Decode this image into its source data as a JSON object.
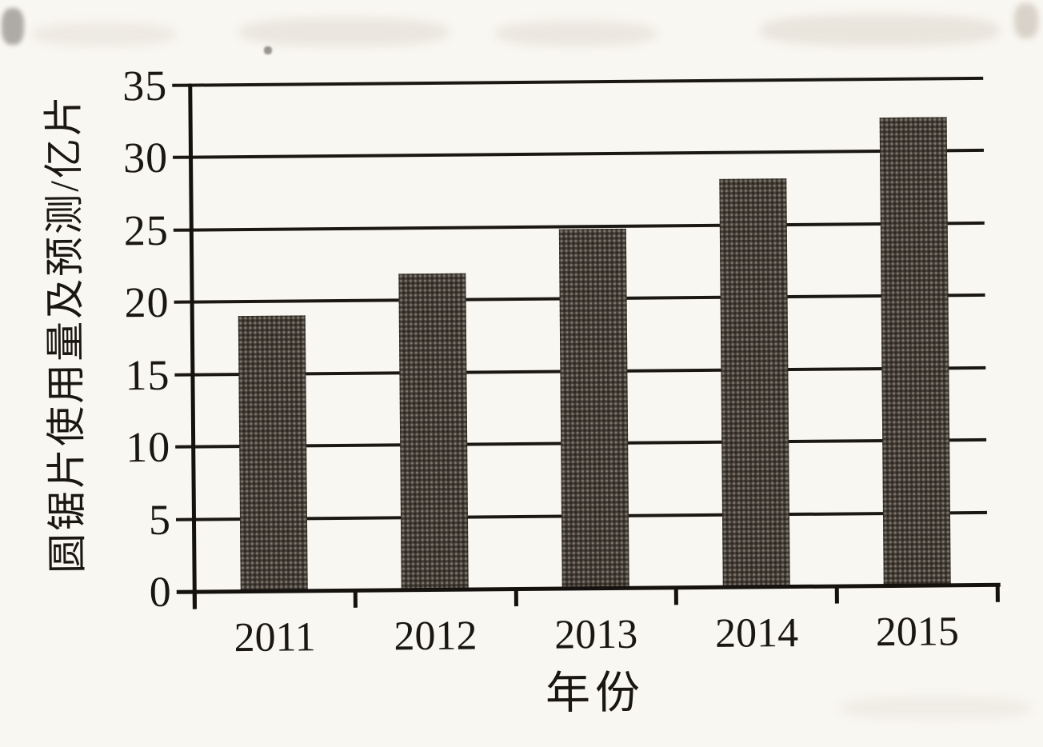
{
  "chart_data": {
    "type": "bar",
    "title": "",
    "xlabel": "年份",
    "ylabel": "圆锯片使用量及预测/亿片",
    "categories": [
      "2011",
      "2012",
      "2013",
      "2014",
      "2015"
    ],
    "values": [
      19,
      21.8,
      24.8,
      28.2,
      32.3
    ],
    "ylim": [
      0,
      35
    ],
    "yticks": [
      "0",
      "5",
      "10",
      "15",
      "20",
      "25",
      "30",
      "35"
    ],
    "ytick_values": [
      0,
      5,
      10,
      15,
      20,
      25,
      30,
      35
    ],
    "grid": "horizontal",
    "legend": "none",
    "bar_color": "#443e37",
    "line_color": "#1b1713",
    "paper_color": "#f9f7f1"
  }
}
